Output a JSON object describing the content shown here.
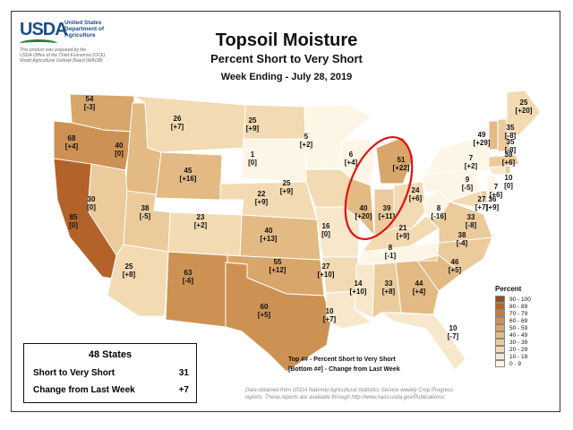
{
  "header": {
    "logo_text": "USDA",
    "dept_lines": [
      "United States",
      "Department of",
      "Agriculture"
    ],
    "prepared_lines": [
      "This product was prepared by the",
      "USDA Office of the Chief Economist (OCE)",
      "World Agricultural Outlook Board (WAOB)"
    ],
    "title": "Topsoil Moisture",
    "subtitle": "Percent Short to Very Short",
    "week": "Week Ending - July 28, 2019"
  },
  "legend": {
    "title": "Percent",
    "items": [
      {
        "label": "90 - 100",
        "color": "#9a4d1c"
      },
      {
        "label": "80 - 89",
        "color": "#b3632a"
      },
      {
        "label": "70 - 79",
        "color": "#c17b3c"
      },
      {
        "label": "60 - 69",
        "color": "#cd9253"
      },
      {
        "label": "50 - 59",
        "color": "#d8a66a"
      },
      {
        "label": "40 - 49",
        "color": "#e3ba84"
      },
      {
        "label": "30 - 39",
        "color": "#ebcb9c"
      },
      {
        "label": "20 - 29",
        "color": "#f2dab3"
      },
      {
        "label": "10 - 19",
        "color": "#f7e8cc"
      },
      {
        "label": "0 - 9",
        "color": "#fdf6e6"
      }
    ]
  },
  "summary": {
    "title": "48 States",
    "rows": [
      {
        "label": "Short to Very Short",
        "value": "31"
      },
      {
        "label": "Change from Last Week",
        "value": "+7"
      }
    ]
  },
  "notes": {
    "line1": "Top ## - Percent Short to Very Short",
    "line2": "[Bottom ##] - Change from Last Week"
  },
  "source": {
    "line1": "Data obtained from USDA National Agricultural Statistics Service weekly Crop Progress",
    "line2": "reports.  These reports are available through http://www.nass.usda.gov/Publications/."
  },
  "states": [
    {
      "id": "WA",
      "value": "54",
      "change": "[-3]"
    },
    {
      "id": "OR",
      "value": "68",
      "change": "[+4]"
    },
    {
      "id": "CA",
      "value": "85",
      "change": "[0]"
    },
    {
      "id": "ID",
      "value": "40",
      "change": "[0]"
    },
    {
      "id": "NV",
      "value": "30",
      "change": "[0]"
    },
    {
      "id": "UT",
      "value": "38",
      "change": "[-5]"
    },
    {
      "id": "AZ",
      "value": "25",
      "change": "[+8]"
    },
    {
      "id": "MT",
      "value": "26",
      "change": "[+7]"
    },
    {
      "id": "WY",
      "value": "45",
      "change": "[+16]"
    },
    {
      "id": "CO",
      "value": "23",
      "change": "[+2]"
    },
    {
      "id": "NM",
      "value": "63",
      "change": "[-6]"
    },
    {
      "id": "ND",
      "value": "25",
      "change": "[+9]"
    },
    {
      "id": "SD",
      "value": "1",
      "change": "[0]"
    },
    {
      "id": "NE",
      "value": "22",
      "change": "[+9]"
    },
    {
      "id": "KS",
      "value": "40",
      "change": "[+13]"
    },
    {
      "id": "OK",
      "value": "55",
      "change": "[+12]"
    },
    {
      "id": "TX",
      "value": "60",
      "change": "[+5]"
    },
    {
      "id": "MN",
      "value": "5",
      "change": "[+2]"
    },
    {
      "id": "IA",
      "value": "25",
      "change": "[+9]"
    },
    {
      "id": "MO",
      "value": "16",
      "change": "[0]"
    },
    {
      "id": "AR",
      "value": "27",
      "change": "[+10]"
    },
    {
      "id": "LA",
      "value": "10",
      "change": "[+7]"
    },
    {
      "id": "WI",
      "value": "6",
      "change": "[+4]"
    },
    {
      "id": "IL",
      "value": "40",
      "change": "[+20]"
    },
    {
      "id": "MI",
      "value": "51",
      "change": "[+22]"
    },
    {
      "id": "IN",
      "value": "39",
      "change": "[+11]"
    },
    {
      "id": "OH",
      "value": "24",
      "change": "[+6]"
    },
    {
      "id": "KY",
      "value": "21",
      "change": "[+9]"
    },
    {
      "id": "TN",
      "value": "8",
      "change": "[-1]"
    },
    {
      "id": "MS",
      "value": "14",
      "change": "[+10]"
    },
    {
      "id": "AL",
      "value": "33",
      "change": "[+8]"
    },
    {
      "id": "GA",
      "value": "44",
      "change": "[+4]"
    },
    {
      "id": "FL",
      "value": "10",
      "change": "[-7]"
    },
    {
      "id": "SC",
      "value": "46",
      "change": "[+5]"
    },
    {
      "id": "NC",
      "value": "38",
      "change": "[-4]"
    },
    {
      "id": "VA",
      "value": "33",
      "change": "[-8]"
    },
    {
      "id": "WV",
      "value": "8",
      "change": "[-16]"
    },
    {
      "id": "PA",
      "value": "9",
      "change": "[-5]"
    },
    {
      "id": "NY",
      "value": "7",
      "change": "[+2]"
    },
    {
      "id": "MD",
      "value": "27",
      "change": "[+7]"
    },
    {
      "id": "DE",
      "value": "36",
      "change": "[+9]"
    },
    {
      "id": "NJ",
      "value": "7",
      "change": "[+6]"
    },
    {
      "id": "CT",
      "value": "10",
      "change": "[0]"
    },
    {
      "id": "RI",
      "value": "38",
      "change": "[+6]"
    },
    {
      "id": "MA",
      "value": "35",
      "change": "[-8]"
    },
    {
      "id": "VT",
      "value": "49",
      "change": "[+29]"
    },
    {
      "id": "NH",
      "value": "35",
      "change": "[-8]"
    },
    {
      "id": "ME",
      "value": "25",
      "change": "[+20]"
    }
  ],
  "highlight": {
    "color": "#e01010"
  }
}
